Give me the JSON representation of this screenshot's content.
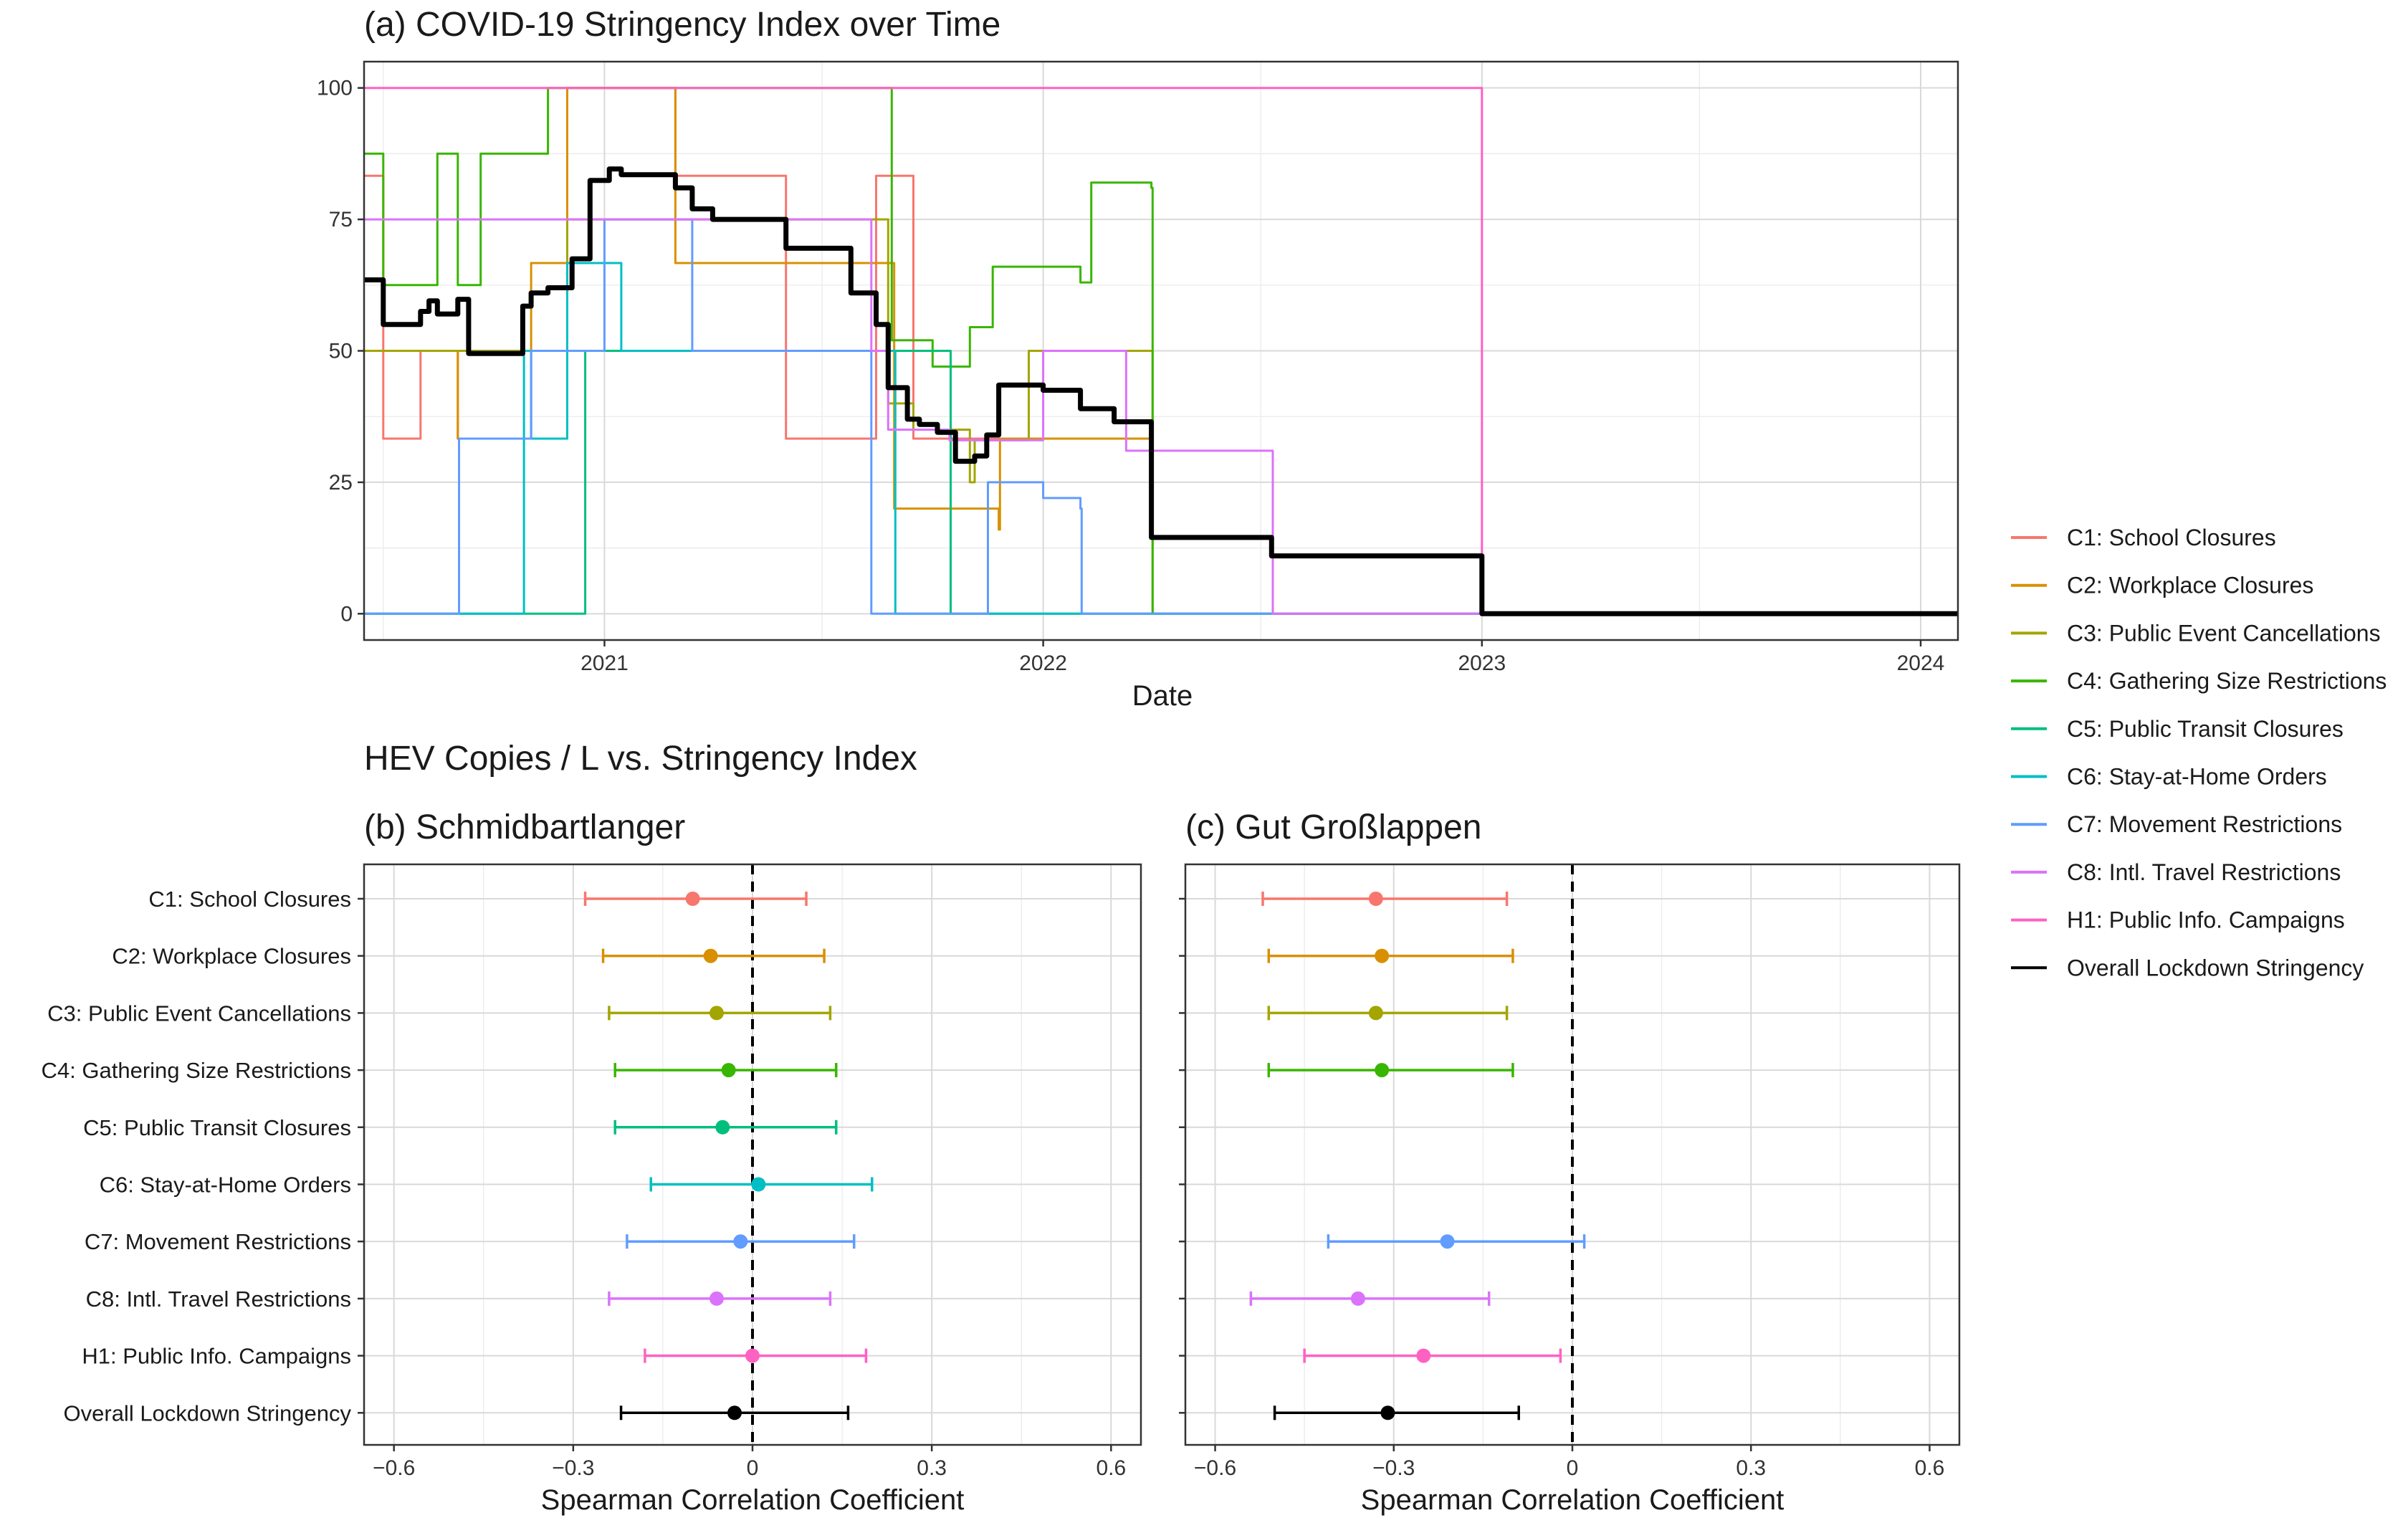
{
  "chart_data": [
    {
      "type": "line",
      "title": "(a) COVID-19 Stringency Index over Time",
      "xlabel": "Date",
      "ylabel": "",
      "xlim": [
        "2020-06-15",
        "2024-02-01"
      ],
      "ylim": [
        -5,
        105
      ],
      "x_ticks": [
        "2021",
        "2022",
        "2023",
        "2024"
      ],
      "y_ticks": [
        "0",
        "25",
        "50",
        "75",
        "100"
      ],
      "grid": true,
      "legend_position": "right",
      "series": [
        {
          "name": "C1: School Closures",
          "color": "#F8766D",
          "step": true,
          "points": [
            [
              "2020-06-15",
              83.3
            ],
            [
              "2020-07-01",
              33.3
            ],
            [
              "2020-08-01",
              50
            ],
            [
              "2020-09-01",
              33.3
            ],
            [
              "2020-12-01",
              100
            ],
            [
              "2021-03-01",
              83.3
            ],
            [
              "2021-06-01",
              33.3
            ],
            [
              "2021-08-15",
              83.3
            ],
            [
              "2021-09-15",
              33.3
            ],
            [
              "2022-01-01",
              33.3
            ],
            [
              "2022-04-01",
              33.3
            ]
          ]
        },
        {
          "name": "C2: Workplace Closures",
          "color": "#D89000",
          "step": true,
          "points": [
            [
              "2020-06-15",
              50
            ],
            [
              "2020-09-01",
              33.3
            ],
            [
              "2020-11-01",
              66.7
            ],
            [
              "2020-12-01",
              100
            ],
            [
              "2021-03-01",
              66.7
            ],
            [
              "2021-08-15",
              66.7
            ],
            [
              "2021-08-30",
              20
            ],
            [
              "2021-11-25",
              16
            ],
            [
              "2021-11-26",
              33.3
            ],
            [
              "2022-04-01",
              33.3
            ]
          ]
        },
        {
          "name": "C3: Public Event Cancellations",
          "color": "#A3A500",
          "step": true,
          "points": [
            [
              "2020-06-15",
              50
            ],
            [
              "2020-10-15",
              50
            ],
            [
              "2020-12-01",
              75
            ],
            [
              "2021-08-15",
              75
            ],
            [
              "2021-08-25",
              40
            ],
            [
              "2021-09-15",
              35
            ],
            [
              "2021-11-01",
              25
            ],
            [
              "2021-11-05",
              33
            ],
            [
              "2021-12-20",
              50
            ],
            [
              "2022-04-01",
              50
            ],
            [
              "2022-04-02",
              0
            ],
            [
              "2024-02-01",
              0
            ]
          ]
        },
        {
          "name": "C4: Gathering Size Restrictions",
          "color": "#39B600",
          "step": true,
          "points": [
            [
              "2020-06-15",
              87.5
            ],
            [
              "2020-07-01",
              62.5
            ],
            [
              "2020-08-15",
              87.5
            ],
            [
              "2020-09-01",
              62.5
            ],
            [
              "2020-09-20",
              87.5
            ],
            [
              "2020-11-15",
              100
            ],
            [
              "2021-08-25",
              100
            ],
            [
              "2021-08-28",
              52
            ],
            [
              "2021-10-01",
              47
            ],
            [
              "2021-11-01",
              54.5
            ],
            [
              "2021-11-20",
              66
            ],
            [
              "2022-02-01",
              63
            ],
            [
              "2022-02-10",
              82
            ],
            [
              "2022-04-01",
              81
            ],
            [
              "2022-04-02",
              0
            ],
            [
              "2024-02-01",
              0
            ]
          ]
        },
        {
          "name": "C5: Public Transit Closures",
          "color": "#00BF7D",
          "step": true,
          "points": [
            [
              "2020-06-15",
              0
            ],
            [
              "2020-12-15",
              0
            ],
            [
              "2020-12-16",
              50
            ],
            [
              "2021-08-28",
              50
            ],
            [
              "2021-10-15",
              50
            ],
            [
              "2021-10-16",
              0
            ],
            [
              "2024-02-01",
              0
            ]
          ]
        },
        {
          "name": "C6: Stay-at-Home Orders",
          "color": "#00BFC4",
          "step": true,
          "points": [
            [
              "2020-06-15",
              0
            ],
            [
              "2020-10-25",
              0
            ],
            [
              "2020-10-26",
              50
            ],
            [
              "2020-11-01",
              33.3
            ],
            [
              "2020-12-01",
              66.7
            ],
            [
              "2021-01-15",
              50
            ],
            [
              "2021-08-30",
              50
            ],
            [
              "2021-08-31",
              0
            ],
            [
              "2024-02-01",
              0
            ]
          ]
        },
        {
          "name": "C7: Movement Restrictions",
          "color": "#619CFF",
          "step": true,
          "points": [
            [
              "2020-06-15",
              0
            ],
            [
              "2020-09-01",
              0
            ],
            [
              "2020-09-02",
              33.3
            ],
            [
              "2020-11-01",
              50
            ],
            [
              "2021-01-01",
              75
            ],
            [
              "2021-03-15",
              50
            ],
            [
              "2021-08-10",
              50
            ],
            [
              "2021-08-11",
              0
            ],
            [
              "2021-11-15",
              0
            ],
            [
              "2021-11-16",
              25
            ],
            [
              "2022-01-01",
              22
            ],
            [
              "2022-02-01",
              20
            ],
            [
              "2022-02-02",
              0
            ],
            [
              "2024-02-01",
              0
            ]
          ]
        },
        {
          "name": "C8: Intl. Travel Restrictions",
          "color": "#DB72FB",
          "step": true,
          "points": [
            [
              "2020-06-15",
              75
            ],
            [
              "2021-08-10",
              75
            ],
            [
              "2021-08-11",
              50
            ],
            [
              "2021-08-25",
              35
            ],
            [
              "2021-10-15",
              33
            ],
            [
              "2022-01-01",
              50
            ],
            [
              "2022-03-10",
              50
            ],
            [
              "2022-03-11",
              31
            ],
            [
              "2022-07-10",
              31
            ],
            [
              "2022-07-11",
              0
            ],
            [
              "2024-02-01",
              0
            ]
          ]
        },
        {
          "name": "H1: Public Info. Campaigns",
          "color": "#FF61C3",
          "step": true,
          "points": [
            [
              "2020-06-15",
              100
            ],
            [
              "2022-12-31",
              100
            ],
            [
              "2023-01-01",
              0
            ],
            [
              "2024-02-01",
              0
            ]
          ]
        },
        {
          "name": "Overall Lockdown Stringency",
          "color": "#000000",
          "step": true,
          "emphasis": true,
          "points": [
            [
              "2020-06-15",
              63.5
            ],
            [
              "2020-07-01",
              55
            ],
            [
              "2020-08-01",
              57.5
            ],
            [
              "2020-08-08",
              59.5
            ],
            [
              "2020-08-15",
              57
            ],
            [
              "2020-09-01",
              59.8
            ],
            [
              "2020-09-10",
              49.5
            ],
            [
              "2020-10-25",
              58.5
            ],
            [
              "2020-11-01",
              61
            ],
            [
              "2020-11-15",
              62
            ],
            [
              "2020-12-05",
              67.5
            ],
            [
              "2020-12-20",
              82.4
            ],
            [
              "2021-01-05",
              84.6
            ],
            [
              "2021-01-15",
              83.5
            ],
            [
              "2021-03-01",
              81
            ],
            [
              "2021-03-15",
              77
            ],
            [
              "2021-04-01",
              75
            ],
            [
              "2021-06-01",
              69.5
            ],
            [
              "2021-07-25",
              61
            ],
            [
              "2021-08-15",
              55
            ],
            [
              "2021-08-25",
              43
            ],
            [
              "2021-09-10",
              37
            ],
            [
              "2021-09-20",
              36
            ],
            [
              "2021-10-05",
              34.5
            ],
            [
              "2021-10-20",
              29
            ],
            [
              "2021-11-05",
              30
            ],
            [
              "2021-11-15",
              34
            ],
            [
              "2021-11-25",
              43.5
            ],
            [
              "2022-01-01",
              42.5
            ],
            [
              "2022-02-01",
              39
            ],
            [
              "2022-03-01",
              36.5
            ],
            [
              "2022-04-01",
              14.5
            ],
            [
              "2022-07-10",
              11
            ],
            [
              "2022-12-31",
              11
            ],
            [
              "2023-01-01",
              0
            ],
            [
              "2024-02-01",
              0
            ]
          ]
        }
      ]
    },
    {
      "type": "scatter",
      "section_title": "HEV Copies / L vs. Stringency Index",
      "title": "(b) Schmidbartlanger",
      "xlabel": "Spearman Correlation Coefficient",
      "xlim": [
        -0.65,
        0.65
      ],
      "x_ticks": [
        "-0.6",
        "-0.3",
        "0",
        "0.3",
        "0.6"
      ],
      "reference_line": 0,
      "categories": [
        "C1: School Closures",
        "C2: Workplace Closures",
        "C3: Public Event Cancellations",
        "C4: Gathering Size Restrictions",
        "C5: Public Transit Closures",
        "C6: Stay-at-Home Orders",
        "C7: Movement Restrictions",
        "C8: Intl. Travel Restrictions",
        "H1: Public Info. Campaigns",
        "Overall Lockdown Stringency"
      ],
      "estimate": [
        -0.1,
        -0.07,
        -0.06,
        -0.04,
        -0.05,
        0.01,
        -0.02,
        -0.06,
        0.0,
        -0.03
      ],
      "ci_low": [
        -0.28,
        -0.25,
        -0.24,
        -0.23,
        -0.23,
        -0.17,
        -0.21,
        -0.24,
        -0.18,
        -0.22
      ],
      "ci_high": [
        0.09,
        0.12,
        0.13,
        0.14,
        0.14,
        0.2,
        0.17,
        0.13,
        0.19,
        0.16
      ]
    },
    {
      "type": "scatter",
      "title": "(c) Gut Großlappen",
      "xlabel": "Spearman Correlation Coefficient",
      "xlim": [
        -0.65,
        0.65
      ],
      "x_ticks": [
        "-0.6",
        "-0.3",
        "0",
        "0.3",
        "0.6"
      ],
      "reference_line": 0,
      "categories": [
        "C1: School Closures",
        "C2: Workplace Closures",
        "C3: Public Event Cancellations",
        "C4: Gathering Size Restrictions",
        "C5: Public Transit Closures",
        "C6: Stay-at-Home Orders",
        "C7: Movement Restrictions",
        "C8: Intl. Travel Restrictions",
        "H1: Public Info. Campaigns",
        "Overall Lockdown Stringency"
      ],
      "estimate": [
        -0.33,
        -0.32,
        -0.33,
        -0.32,
        null,
        null,
        -0.21,
        -0.36,
        -0.25,
        -0.31
      ],
      "ci_low": [
        -0.52,
        -0.51,
        -0.51,
        -0.51,
        null,
        null,
        -0.41,
        -0.54,
        -0.45,
        -0.5
      ],
      "ci_high": [
        -0.11,
        -0.1,
        -0.11,
        -0.1,
        null,
        null,
        0.02,
        -0.14,
        -0.02,
        -0.09
      ]
    }
  ]
}
